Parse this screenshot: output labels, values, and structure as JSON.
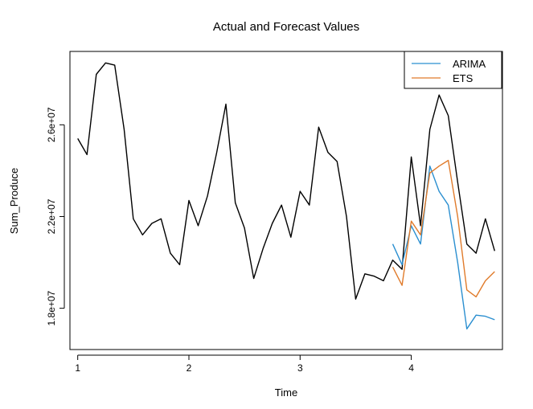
{
  "chart_data": {
    "type": "line",
    "title": "Actual and Forecast Values",
    "xlabel": "Time",
    "ylabel": "Sum_Produce",
    "xlim": [
      0.93,
      4.82
    ],
    "ylim": [
      16200000,
      29200000
    ],
    "xticks": [
      1,
      2,
      3,
      4
    ],
    "xtick_labels": [
      "1",
      "2",
      "3",
      "4"
    ],
    "yticks": [
      18000000,
      22000000,
      26000000
    ],
    "ytick_labels": [
      "1.8e+07",
      "2.2e+07",
      "2.6e+07"
    ],
    "grid": false,
    "legend_position": "top-right",
    "series": [
      {
        "name": "",
        "color": "#000000",
        "points": [
          [
            1.0,
            25.4
          ],
          [
            1.083,
            24.7
          ],
          [
            1.167,
            28.2
          ],
          [
            1.25,
            28.7
          ],
          [
            1.333,
            28.6
          ],
          [
            1.417,
            25.8
          ],
          [
            1.5,
            21.9
          ],
          [
            1.583,
            21.2
          ],
          [
            1.667,
            21.7
          ],
          [
            1.75,
            21.9
          ],
          [
            1.833,
            20.4
          ],
          [
            1.917,
            19.9
          ],
          [
            2.0,
            22.7
          ],
          [
            2.083,
            21.6
          ],
          [
            2.167,
            22.9
          ],
          [
            2.25,
            24.8
          ],
          [
            2.333,
            26.9
          ],
          [
            2.417,
            22.6
          ],
          [
            2.5,
            21.5
          ],
          [
            2.583,
            19.3
          ],
          [
            2.667,
            20.6
          ],
          [
            2.75,
            21.7
          ],
          [
            2.833,
            22.5
          ],
          [
            2.917,
            21.1
          ],
          [
            3.0,
            23.1
          ],
          [
            3.083,
            22.5
          ],
          [
            3.167,
            25.9
          ],
          [
            3.25,
            24.8
          ],
          [
            3.333,
            24.4
          ],
          [
            3.417,
            22.0
          ],
          [
            3.5,
            18.4
          ],
          [
            3.583,
            19.5
          ],
          [
            3.667,
            19.4
          ],
          [
            3.75,
            19.2
          ],
          [
            3.833,
            20.1
          ],
          [
            3.917,
            19.7
          ],
          [
            4.0,
            24.6
          ],
          [
            4.083,
            21.6
          ],
          [
            4.167,
            25.8
          ],
          [
            4.25,
            27.3
          ],
          [
            4.333,
            26.4
          ],
          [
            4.417,
            23.5
          ],
          [
            4.5,
            20.8
          ],
          [
            4.583,
            20.4
          ],
          [
            4.667,
            21.9
          ],
          [
            4.75,
            20.5
          ]
        ]
      },
      {
        "name": "ARIMA",
        "color": "#2b8fd0",
        "points": [
          [
            3.833,
            20.8
          ],
          [
            3.917,
            19.9
          ],
          [
            4.0,
            21.6
          ],
          [
            4.083,
            20.8
          ],
          [
            4.167,
            24.2
          ],
          [
            4.25,
            23.1
          ],
          [
            4.333,
            22.5
          ],
          [
            4.417,
            20.0
          ],
          [
            4.5,
            17.1
          ],
          [
            4.583,
            17.7
          ],
          [
            4.667,
            17.65
          ],
          [
            4.75,
            17.5
          ]
        ]
      },
      {
        "name": "ETS",
        "color": "#e07b2b",
        "points": [
          [
            3.833,
            19.8
          ],
          [
            3.917,
            19.0
          ],
          [
            4.0,
            21.8
          ],
          [
            4.083,
            21.2
          ],
          [
            4.167,
            23.9
          ],
          [
            4.25,
            24.2
          ],
          [
            4.333,
            24.45
          ],
          [
            4.417,
            22.0
          ],
          [
            4.5,
            18.8
          ],
          [
            4.583,
            18.5
          ],
          [
            4.667,
            19.2
          ],
          [
            4.75,
            19.6
          ]
        ]
      }
    ]
  }
}
